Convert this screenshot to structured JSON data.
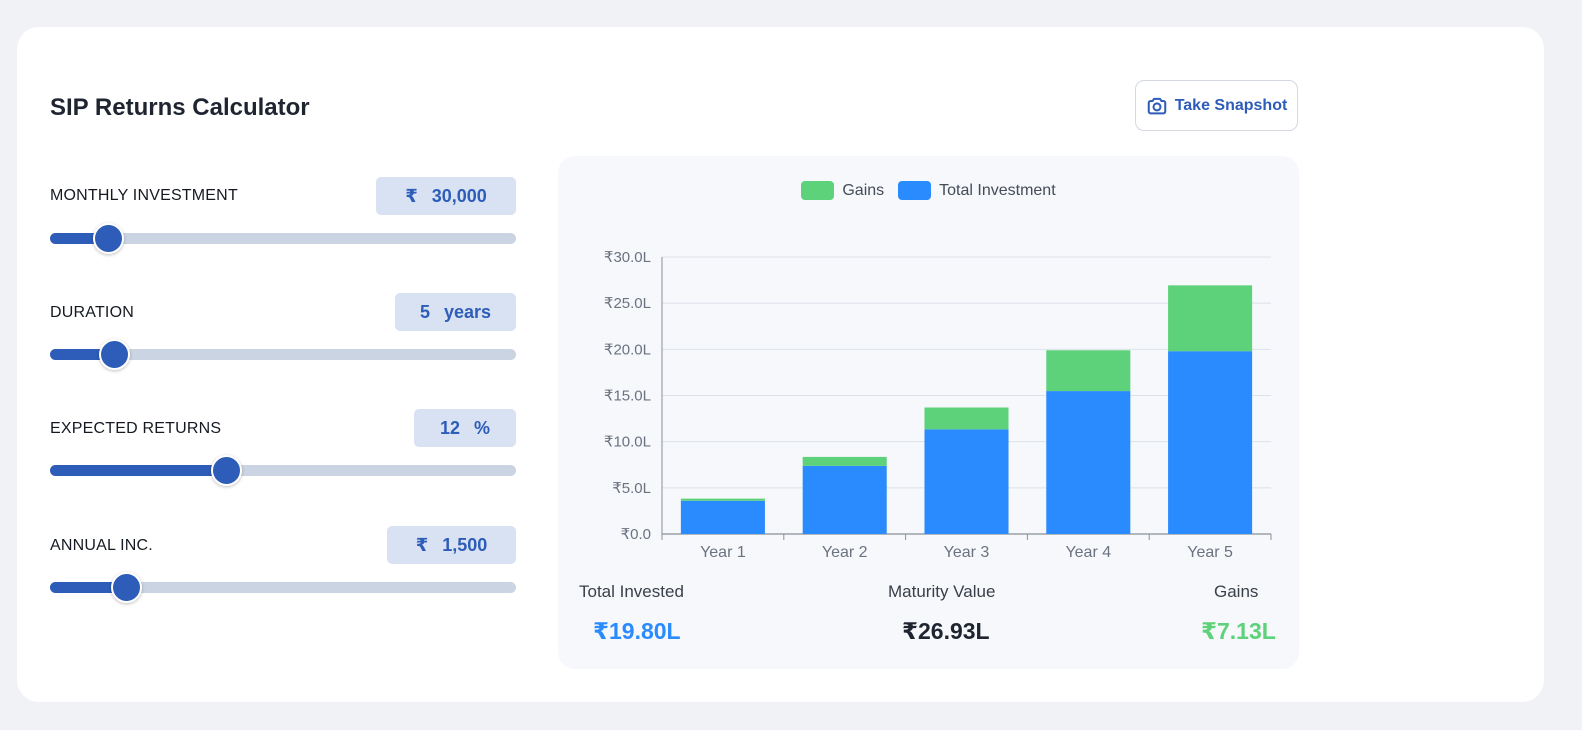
{
  "app": {
    "title": "SIP Returns Calculator",
    "snapshot_label": "Take Snapshot"
  },
  "controls": [
    {
      "label": "MONTHLY INVESTMENT",
      "prefix": "₹",
      "value": "30,000",
      "suffix": "",
      "fill_fraction": 0.125
    },
    {
      "label": "DURATION",
      "prefix": "",
      "value": "5",
      "suffix": "years",
      "fill_fraction": 0.138
    },
    {
      "label": "EXPECTED RETURNS",
      "prefix": "",
      "value": "12",
      "suffix": "%",
      "fill_fraction": 0.378
    },
    {
      "label": "ANNUAL INC.",
      "prefix": "₹",
      "value": "1,500",
      "suffix": "",
      "fill_fraction": 0.164
    }
  ],
  "colors": {
    "accent": "#2d5db8",
    "slider_track": "#cbd4e2",
    "gains": "#5dd27a",
    "total_investment": "#2a8bff",
    "maturity": "#1f2530"
  },
  "chart_data": {
    "type": "bar",
    "stacked": true,
    "categories": [
      "Year 1",
      "Year 2",
      "Year 3",
      "Year 4",
      "Year 5"
    ],
    "series": [
      {
        "name": "Total Investment",
        "color": "#2a8bff",
        "values": [
          3.6,
          7.38,
          11.34,
          15.48,
          19.8
        ]
      },
      {
        "name": "Gains",
        "color": "#5dd27a",
        "values": [
          0.23,
          0.97,
          2.36,
          4.42,
          7.13
        ]
      }
    ],
    "legend": [
      "Gains",
      "Total Investment"
    ],
    "legend_position": "top-center",
    "yticks": [
      "₹0.0",
      "₹5.0L",
      "₹10.0L",
      "₹15.0L",
      "₹20.0L",
      "₹25.0L",
      "₹30.0L"
    ],
    "ylim": [
      0,
      30
    ],
    "unit": "L",
    "grid": true,
    "title": "",
    "xlabel": "",
    "ylabel": ""
  },
  "summary": {
    "total_invested_label": "Total Invested",
    "total_invested_value": "₹19.80L",
    "maturity_label": "Maturity Value",
    "maturity_value": "₹26.93L",
    "gains_label": "Gains",
    "gains_value": "₹7.13L"
  }
}
